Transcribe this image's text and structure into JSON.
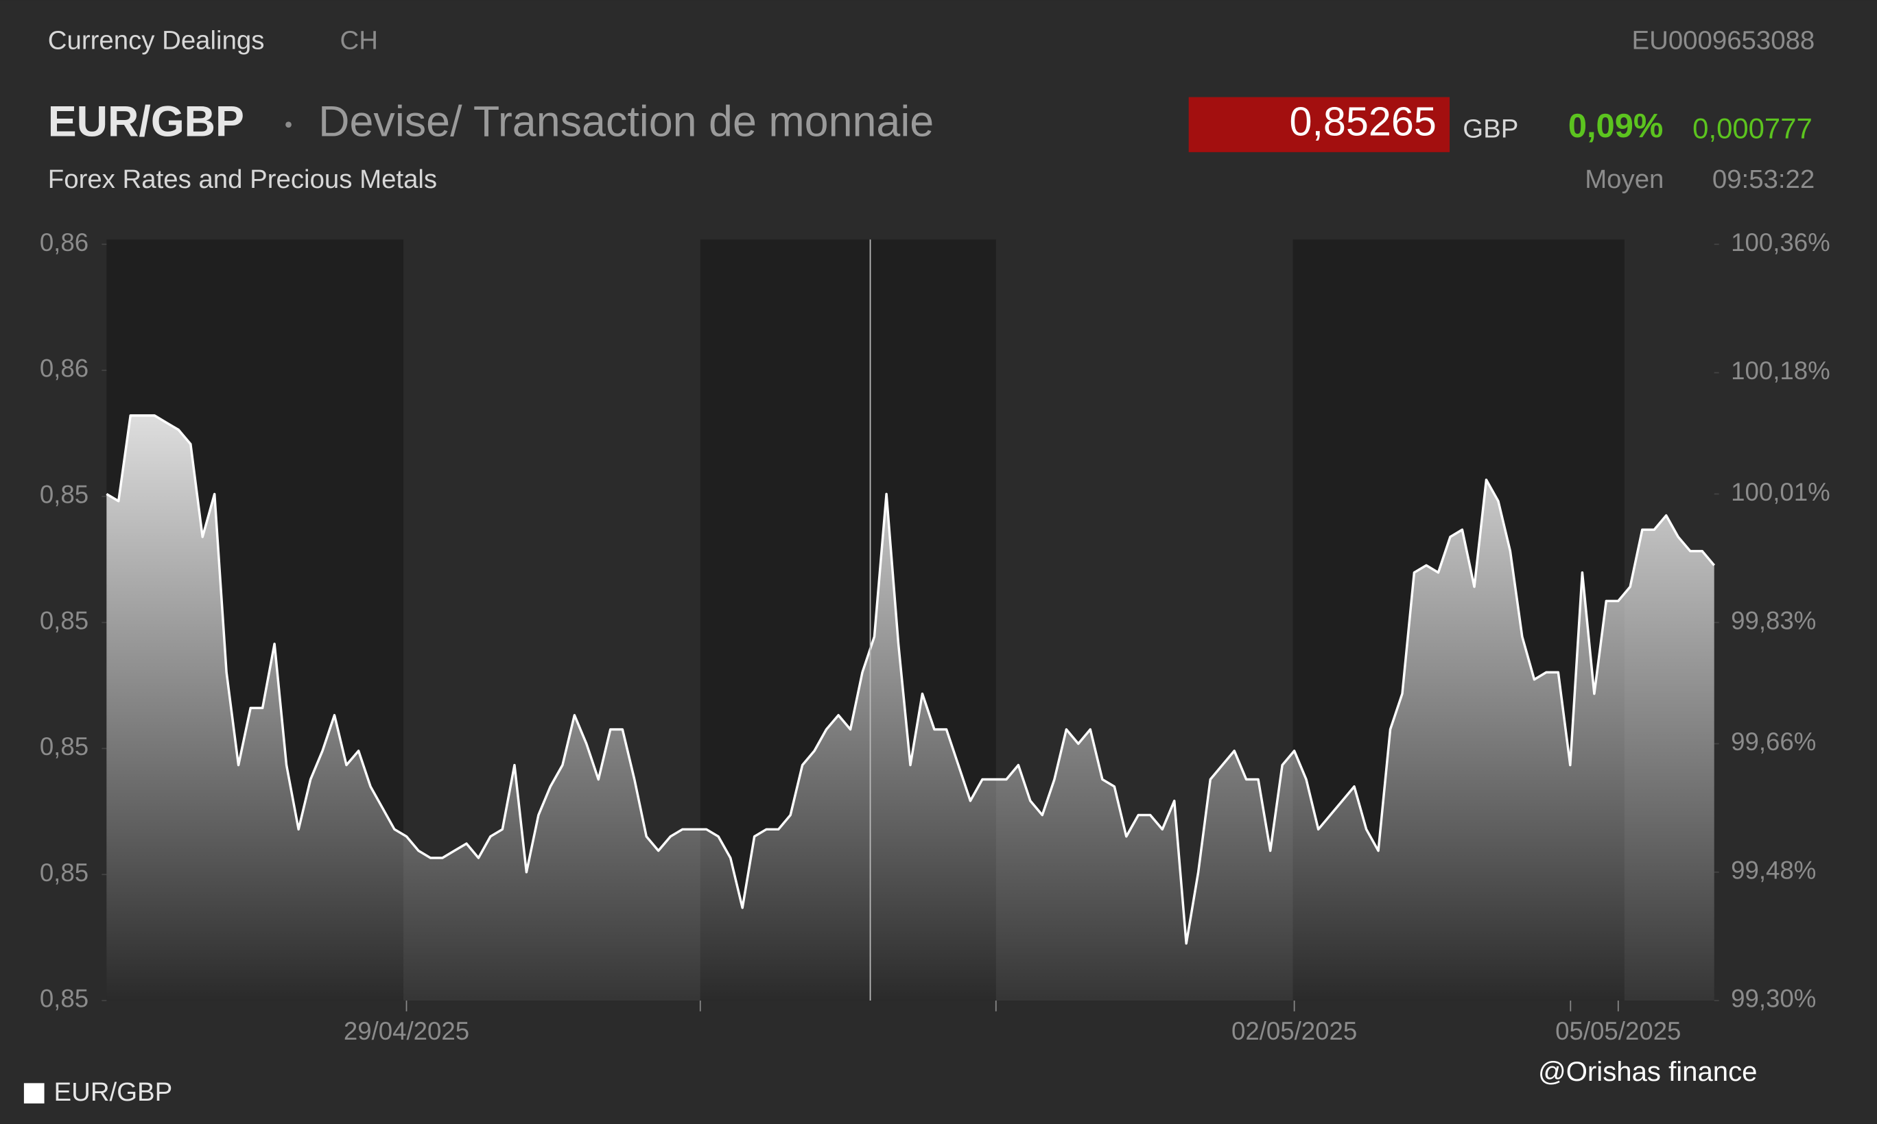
{
  "header": {
    "source": "Currency Dealings",
    "country": "CH",
    "isin": "EU0009653088",
    "symbol": "EUR/GBP",
    "description": "Devise/ Transaction de monnaie",
    "price": "0,85265",
    "currency": "GBP",
    "change_pct": "0,09%",
    "change_abs": "0,000777",
    "subtitle": "Forex Rates and Precious Metals",
    "price_type": "Moyen",
    "time": "09:53:22"
  },
  "watermark": "@Orishas finance",
  "chart_data": {
    "type": "area",
    "series": [
      {
        "name": "EUR/GBP",
        "color": "#ffffff",
        "axis": "y2",
        "values": [
          100.01,
          100.0,
          100.12,
          100.12,
          100.12,
          100.11,
          100.1,
          100.08,
          99.95,
          100.01,
          99.76,
          99.63,
          99.71,
          99.71,
          99.8,
          99.63,
          99.54,
          99.61,
          99.65,
          99.7,
          99.63,
          99.65,
          99.6,
          99.57,
          99.54,
          99.53,
          99.51,
          99.5,
          99.5,
          99.51,
          99.52,
          99.5,
          99.53,
          99.54,
          99.63,
          99.48,
          99.56,
          99.6,
          99.63,
          99.7,
          99.66,
          99.61,
          99.68,
          99.68,
          99.61,
          99.53,
          99.51,
          99.53,
          99.54,
          99.54,
          99.54,
          99.53,
          99.5,
          99.43,
          99.53,
          99.54,
          99.54,
          99.56,
          99.63,
          99.65,
          99.68,
          99.7,
          99.68,
          99.76,
          99.81,
          100.01,
          99.8,
          99.63,
          99.73,
          99.68,
          99.68,
          99.63,
          99.58,
          99.61,
          99.61,
          99.61,
          99.63,
          99.58,
          99.56,
          99.61,
          99.68,
          99.66,
          99.68,
          99.61,
          99.6,
          99.53,
          99.56,
          99.56,
          99.54,
          99.58,
          99.38,
          99.48,
          99.61,
          99.63,
          99.65,
          99.61,
          99.61,
          99.51,
          99.63,
          99.65,
          99.61,
          99.54,
          99.56,
          99.58,
          99.6,
          99.54,
          99.51,
          99.68,
          99.73,
          99.9,
          99.91,
          99.9,
          99.95,
          99.96,
          99.88,
          100.03,
          100.0,
          99.93,
          99.81,
          99.75,
          99.76,
          99.76,
          99.63,
          99.9,
          99.73,
          99.86,
          99.86,
          99.88,
          99.96,
          99.96,
          99.98,
          99.95,
          99.93,
          99.93,
          99.91
        ]
      }
    ],
    "xlim": [
      0,
      134
    ],
    "xticks": [
      {
        "value": 25,
        "label": "29/04/2025"
      },
      {
        "value": 99,
        "label": "02/05/2025"
      },
      {
        "value": 126,
        "label": "05/05/2025"
      }
    ],
    "ylim": [
      0.8451,
      0.8571
    ],
    "yticks": [
      {
        "value": 0.8451,
        "label": "0,85"
      },
      {
        "value": 0.8471,
        "label": "0,85"
      },
      {
        "value": 0.8491,
        "label": "0,85"
      },
      {
        "value": 0.8511,
        "label": "0,85"
      },
      {
        "value": 0.8531,
        "label": "0,85"
      },
      {
        "value": 0.8551,
        "label": "0,86"
      },
      {
        "value": 0.8571,
        "label": "0,86"
      }
    ],
    "y2lim": [
      99.3,
      100.36
    ],
    "y2ticks": [
      {
        "value": 99.3,
        "label": "99,30%"
      },
      {
        "value": 99.48,
        "label": "99,48%"
      },
      {
        "value": 99.66,
        "label": "99,66%"
      },
      {
        "value": 99.83,
        "label": "99,83%"
      },
      {
        "value": 100.01,
        "label": "100,01%"
      },
      {
        "value": 100.18,
        "label": "100,18%"
      },
      {
        "value": 100.36,
        "label": "100,36%"
      }
    ],
    "legend": "bottom-left"
  }
}
